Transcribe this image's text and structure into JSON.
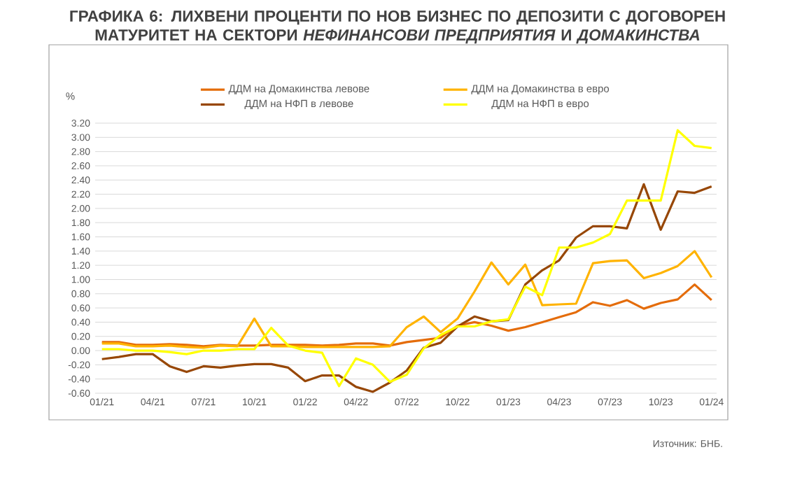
{
  "chart_data": {
    "type": "line",
    "title": "ГРАФИКА 6: ЛИХВЕНИ ПРОЦЕНТИ ПО НОВ БИЗНЕС ПО ДЕПОЗИТИ С ДОГОВОРЕН МАТУРИТЕТ НА СЕКТОРИ *НЕФИНАНСОВИ ПРЕДПРИЯТИЯ* И *ДОМАКИНСТВА*",
    "ylabel": "%",
    "annotations": [
      "Източник: БНБ."
    ],
    "categories": [
      "01/21",
      null,
      null,
      "04/21",
      null,
      null,
      "07/21",
      null,
      null,
      "10/21",
      null,
      null,
      "01/22",
      null,
      null,
      "04/22",
      null,
      null,
      "07/22",
      null,
      null,
      "10/22",
      null,
      null,
      "01/23",
      null,
      null,
      "04/23",
      null,
      null,
      "07/23",
      null,
      null,
      "10/23",
      null,
      null,
      "01/24"
    ],
    "series": [
      {
        "name": "ДДМ на Домакинства левове",
        "color": "#e46c0a",
        "values": [
          0.12,
          0.12,
          0.08,
          0.08,
          0.09,
          0.08,
          0.06,
          0.08,
          0.07,
          0.07,
          0.08,
          0.08,
          0.08,
          0.07,
          0.08,
          0.1,
          0.1,
          0.07,
          0.12,
          0.15,
          0.18,
          0.35,
          0.4,
          0.35,
          0.28,
          0.33,
          0.4,
          0.47,
          0.54,
          0.68,
          0.63,
          0.71,
          0.59,
          0.67,
          0.72,
          0.93,
          0.71
        ]
      },
      {
        "name": "ДДМ на Домакинства в евро",
        "color": "#ffb300",
        "values": [
          0.1,
          0.1,
          0.06,
          0.06,
          0.07,
          0.05,
          0.04,
          0.07,
          0.06,
          0.45,
          0.06,
          0.06,
          0.05,
          0.05,
          0.05,
          0.05,
          0.05,
          0.06,
          0.33,
          0.48,
          0.26,
          0.45,
          0.83,
          1.24,
          0.93,
          1.21,
          0.64,
          0.65,
          0.66,
          1.23,
          1.26,
          1.27,
          1.02,
          1.09,
          1.19,
          1.4,
          1.03
        ]
      },
      {
        "name": "ДДМ на НФП  в левове",
        "color": "#974706",
        "values": [
          -0.12,
          -0.09,
          -0.05,
          -0.05,
          -0.22,
          -0.3,
          -0.22,
          -0.24,
          -0.21,
          -0.19,
          -0.19,
          -0.24,
          -0.43,
          -0.35,
          -0.35,
          -0.51,
          -0.58,
          -0.45,
          -0.28,
          0.04,
          0.11,
          0.34,
          0.48,
          0.41,
          0.43,
          0.93,
          1.13,
          1.27,
          1.59,
          1.75,
          1.75,
          1.72,
          2.34,
          1.7,
          2.24,
          2.22,
          2.31
        ]
      },
      {
        "name": "ДДМ на НФП  в евро",
        "color": "#ffff00",
        "values": [
          0.02,
          0.02,
          0.0,
          0.0,
          -0.02,
          -0.05,
          0.0,
          0.0,
          0.02,
          0.02,
          0.32,
          0.07,
          0.0,
          -0.03,
          -0.5,
          -0.11,
          -0.2,
          -0.44,
          -0.34,
          0.03,
          0.22,
          0.34,
          0.34,
          0.41,
          0.44,
          0.9,
          0.78,
          1.45,
          1.45,
          1.52,
          1.64,
          2.11,
          2.11,
          2.11,
          3.1,
          2.88,
          2.85
        ]
      }
    ],
    "ylim": [
      -0.6,
      3.2
    ],
    "yticks": [
      {
        "value": -0.6,
        "label": "-0.60"
      },
      {
        "value": -0.4,
        "label": "-0.40"
      },
      {
        "value": -0.2,
        "label": "-0.20"
      },
      {
        "value": 0,
        "label": "0.00"
      },
      {
        "value": 0.2,
        "label": "0.20"
      },
      {
        "value": 0.4,
        "label": "0.40"
      },
      {
        "value": 0.6,
        "label": "0.60"
      },
      {
        "value": 0.8,
        "label": "0.80"
      },
      {
        "value": 1.0,
        "label": "1.00"
      },
      {
        "value": 1.2,
        "label": "1.20"
      },
      {
        "value": 1.4,
        "label": "1.40"
      },
      {
        "value": 1.6,
        "label": "1.60"
      },
      {
        "value": 1.8,
        "label": "1.80"
      },
      {
        "value": 2.0,
        "label": "2.00"
      },
      {
        "value": 2.2,
        "label": "2.20"
      },
      {
        "value": 2.4,
        "label": "2.40"
      },
      {
        "value": 2.6,
        "label": "2.60"
      },
      {
        "value": 2.8,
        "label": "2.80"
      },
      {
        "value": 3.0,
        "label": "3.00"
      },
      {
        "value": 3.2,
        "label": "3.20"
      }
    ],
    "grid": "y",
    "legend": "top",
    "marker": "none",
    "line_style": "solid"
  }
}
